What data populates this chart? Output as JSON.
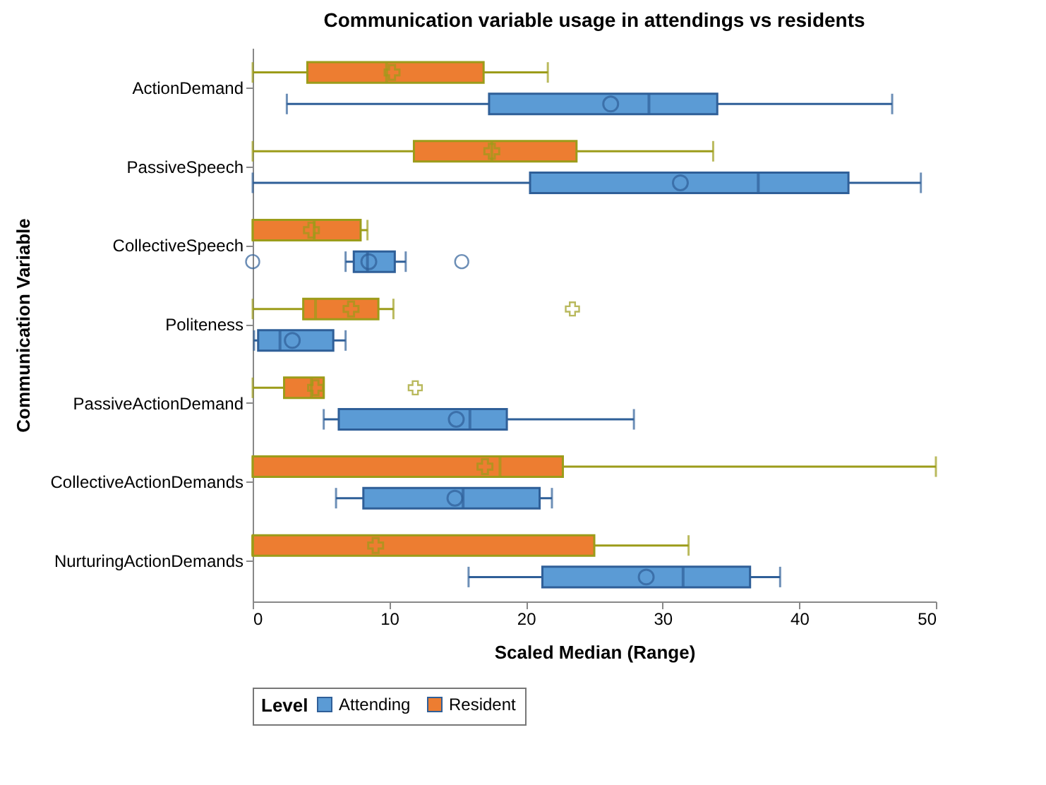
{
  "chart_data": {
    "type": "box",
    "title": "Communication variable usage in attendings vs residents",
    "xlabel": "Scaled Median (Range)",
    "ylabel": "Communication Variable",
    "legend_title": "Level",
    "orientation": "horizontal",
    "categories": [
      "ActionDemand",
      "PassiveSpeech",
      "CollectiveSpeech",
      "Politeness",
      "PassiveActionDemand",
      "CollectiveActionDemands",
      "NurturingActionDemands"
    ],
    "xlim": [
      0,
      50
    ],
    "xticks": [
      0,
      10,
      20,
      30,
      40,
      50
    ],
    "grid": false,
    "legend": "bottom",
    "series": [
      {
        "name": "Attending",
        "color": "#5b9bd5",
        "marker": "circle",
        "boxes": [
          {
            "low": 2.5,
            "q1": 17.3,
            "median": 29.0,
            "q3": 34.0,
            "high": 46.8,
            "mean": 26.2
          },
          {
            "low": 0,
            "q1": 20.3,
            "median": 37.0,
            "q3": 43.6,
            "high": 48.9,
            "mean": 31.3
          },
          {
            "low": 6.8,
            "q1": 7.4,
            "median": 8.4,
            "q3": 10.4,
            "high": 11.2,
            "mean": 8.5,
            "outliers": [
              0,
              15.3
            ]
          },
          {
            "low": 0.1,
            "q1": 0.4,
            "median": 2.0,
            "q3": 5.9,
            "high": 6.8,
            "mean": 2.9
          },
          {
            "low": 5.2,
            "q1": 6.3,
            "median": 15.9,
            "q3": 18.6,
            "high": 27.9,
            "mean": 14.9
          },
          {
            "low": 6.1,
            "q1": 8.1,
            "median": 15.4,
            "q3": 21.0,
            "high": 21.9,
            "mean": 14.8
          },
          {
            "low": 15.8,
            "q1": 21.2,
            "median": 31.5,
            "q3": 36.4,
            "high": 38.6,
            "mean": 28.8
          }
        ]
      },
      {
        "name": "Resident",
        "color": "#ed7d31",
        "marker": "cross",
        "boxes": [
          {
            "low": 0,
            "q1": 4.0,
            "median": 9.8,
            "q3": 16.9,
            "high": 21.6,
            "mean": 10.2
          },
          {
            "low": 0,
            "q1": 11.8,
            "median": 17.5,
            "q3": 23.7,
            "high": 33.7,
            "mean": 17.5
          },
          {
            "low": 0,
            "q1": 0,
            "median": 4.5,
            "q3": 7.9,
            "high": 8.4,
            "mean": 4.3
          },
          {
            "low": 0,
            "q1": 3.7,
            "median": 4.6,
            "q3": 9.2,
            "high": 10.3,
            "mean": 7.2,
            "outliers": [
              23.4
            ]
          },
          {
            "low": 0,
            "q1": 2.3,
            "median": 4.3,
            "q3": 5.2,
            "high": 5.2,
            "mean": 4.6,
            "outliers": [
              11.9
            ]
          },
          {
            "low": 0,
            "q1": 0,
            "median": 18.1,
            "q3": 22.7,
            "high": 50,
            "mean": 17.0
          },
          {
            "low": 0,
            "q1": 0,
            "median": 0,
            "q3": 25.0,
            "high": 31.9,
            "mean": 9.0
          }
        ]
      }
    ]
  }
}
